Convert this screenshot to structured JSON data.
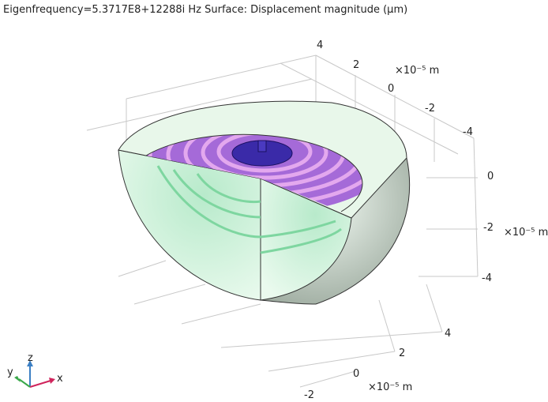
{
  "title": "Eigenfrequency=5.3717E8+12288i Hz  Surface: Displacement magnitude (µm)",
  "axes": [
    {
      "ticks": [
        "4",
        "2",
        "0",
        "-2",
        "-4"
      ],
      "unit": "×10⁻⁵ m"
    },
    {
      "ticks": [
        "0",
        "-2",
        "-4"
      ],
      "unit": "×10⁻⁵ m"
    },
    {
      "ticks": [
        "4",
        "2",
        "0",
        "-2"
      ],
      "unit": "×10⁻⁵ m"
    }
  ],
  "triad": {
    "x": "x",
    "y": "y",
    "z": "z"
  }
}
